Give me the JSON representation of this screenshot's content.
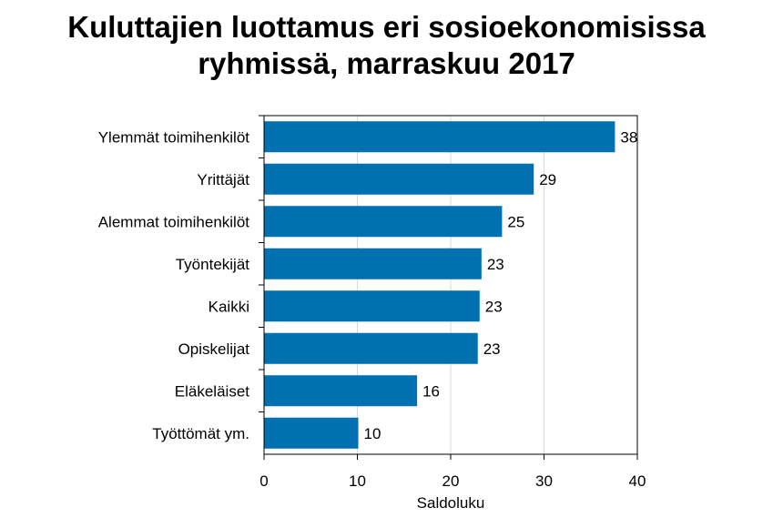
{
  "chart_data": {
    "type": "bar",
    "orientation": "horizontal",
    "title_lines": [
      "Kuluttajien luottamus eri sosioekonomisissa",
      "ryhmissä, marraskuu 2017"
    ],
    "categories": [
      "Ylemmät toimihenkilöt",
      "Yrittäjät",
      "Alemmat toimihenkilöt",
      "Työntekijät",
      "Kaikki",
      "Opiskelijat",
      "Eläkeläiset",
      "Työttömät ym."
    ],
    "values": [
      37.6,
      28.9,
      25.5,
      23.3,
      23.1,
      22.9,
      16.4,
      10.1
    ],
    "value_labels": [
      "38",
      "29",
      "25",
      "23",
      "23",
      "23",
      "16",
      "10"
    ],
    "xlabel": "Saldoluku",
    "ylabel": "",
    "xlim": [
      0,
      40
    ],
    "xticks": [
      "0",
      "10",
      "20",
      "30",
      "40"
    ],
    "grid": "vertical",
    "colors": {
      "bar": "#0070b0",
      "grid": "#d9d9d9",
      "axis": "#000000"
    }
  }
}
